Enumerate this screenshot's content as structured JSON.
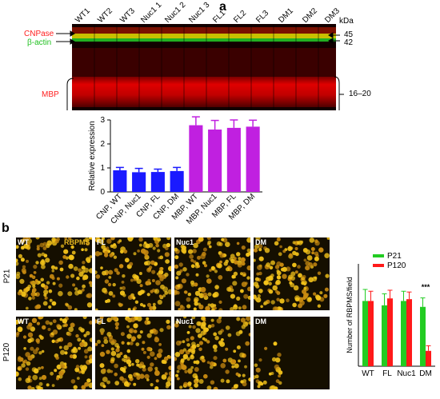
{
  "panel_a": {
    "letter": "a",
    "lanes": [
      "WT1",
      "WT2",
      "WT3",
      "Nuc1 1",
      "Nuc1 2",
      "Nuc1 3",
      "FL1",
      "FL2",
      "FL3",
      "DM1",
      "DM2",
      "DM3"
    ],
    "kda_title": "kDa",
    "markers": [
      "45",
      "42",
      "16–20"
    ],
    "bands": {
      "cnpase": "CNPase",
      "actin": "β-actin",
      "mbp": "MBP"
    }
  },
  "panel_b": {
    "letter": "b",
    "stain_label": "RBPMS",
    "column_labels": [
      "WT",
      "FL",
      "Nuc1",
      "DM"
    ],
    "row_labels": [
      "P21",
      "P120"
    ]
  },
  "colors": {
    "blue": "#1a1aff",
    "magenta": "#c020e0",
    "green": "#22cc22",
    "red": "#ff1a1a",
    "cnpase_text": "#ff2020",
    "actin_text": "#20c020"
  },
  "chart_data": [
    {
      "type": "bar",
      "categories": [
        "CNP, WT",
        "CNP, Nuc1",
        "CNP, FL",
        "CNP, DM",
        "MBP, WT",
        "MBP, Nuc1",
        "MBP, FL",
        "MBP, DM"
      ],
      "values": [
        0.9,
        0.82,
        0.83,
        0.87,
        2.78,
        2.6,
        2.67,
        2.72
      ],
      "errors": [
        0.12,
        0.16,
        0.12,
        0.15,
        0.35,
        0.38,
        0.33,
        0.27
      ],
      "bar_colors": [
        "#1a1aff",
        "#1a1aff",
        "#1a1aff",
        "#1a1aff",
        "#c020e0",
        "#c020e0",
        "#c020e0",
        "#c020e0"
      ],
      "ylabel": "Relative expression",
      "ylim": [
        0,
        3
      ],
      "yticks": [
        "0",
        "1",
        "2",
        "3"
      ]
    },
    {
      "type": "bar",
      "categories": [
        "WT",
        "FL",
        "Nuc1",
        "DM"
      ],
      "series": [
        {
          "name": "P21",
          "values": [
            255,
            238,
            255,
            232
          ],
          "errors": [
            45,
            45,
            38,
            35
          ],
          "color": "#22cc22"
        },
        {
          "name": "P120",
          "values": [
            255,
            265,
            262,
            60
          ],
          "errors": [
            38,
            32,
            28,
            20
          ],
          "color": "#ff1a1a"
        }
      ],
      "ylabel": "Number of RBPMS/field",
      "ylim": [
        0,
        400
      ],
      "annotation": "***"
    }
  ]
}
